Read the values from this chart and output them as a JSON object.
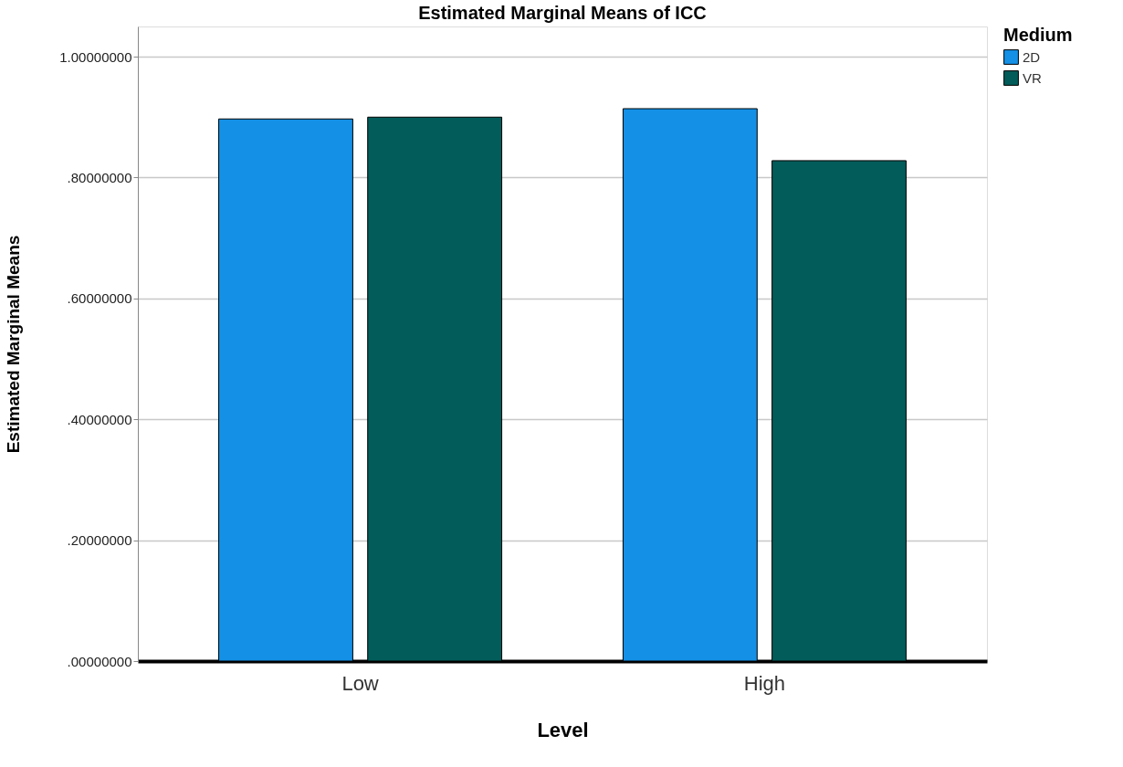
{
  "chart_data": {
    "type": "bar",
    "title": "Estimated Marginal Means of ICC",
    "xlabel": "Level",
    "ylabel": "Estimated Marginal Means",
    "legend_title": "Medium",
    "categories": [
      "Low",
      "High"
    ],
    "series": [
      {
        "name": "2D",
        "color": "#1490e6",
        "values": [
          0.897,
          0.914
        ]
      },
      {
        "name": "VR",
        "color": "#025c5a",
        "values": [
          0.9,
          0.828
        ]
      }
    ],
    "ylim": [
      0,
      1.05
    ],
    "yticks": [
      {
        "value": 0,
        "label": ".00000000"
      },
      {
        "value": 0.2,
        "label": ".20000000"
      },
      {
        "value": 0.4,
        "label": ".40000000"
      },
      {
        "value": 0.6,
        "label": ".60000000"
      },
      {
        "value": 0.8,
        "label": ".80000000"
      },
      {
        "value": 1.0,
        "label": "1.00000000"
      }
    ],
    "grid": "y",
    "legend": "top right"
  }
}
